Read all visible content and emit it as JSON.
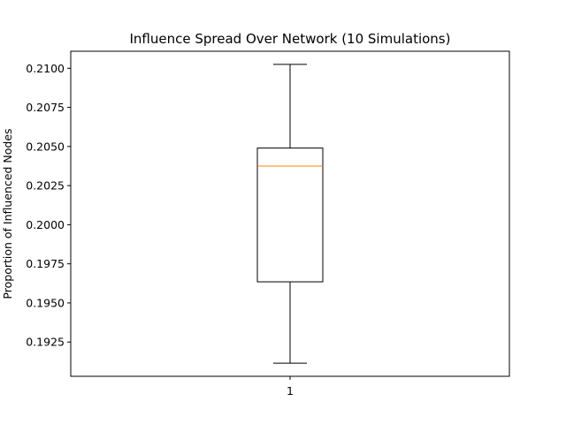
{
  "chart_data": {
    "type": "box",
    "title": "Influence Spread Over Network (10 Simulations)",
    "xlabel": "",
    "ylabel": "Proportion of Influenced Nodes",
    "categories": [
      "1"
    ],
    "boxes": [
      {
        "category": "1",
        "whisker_low": 0.19115,
        "q1": 0.19635,
        "median": 0.20375,
        "q3": 0.2049,
        "whisker_high": 0.21025
      }
    ],
    "ylim": [
      0.19031,
      0.21109
    ],
    "yticks": [
      0.1925,
      0.195,
      0.1975,
      0.2,
      0.2025,
      0.205,
      0.2075,
      0.21
    ],
    "ytick_labels": [
      "0.1925",
      "0.1950",
      "0.1975",
      "0.2000",
      "0.2025",
      "0.2050",
      "0.2075",
      "0.2100"
    ],
    "grid": false,
    "colors": {
      "box": "#000000",
      "median": "#ff7f0e",
      "axes": "#000000",
      "background": "#ffffff"
    }
  }
}
